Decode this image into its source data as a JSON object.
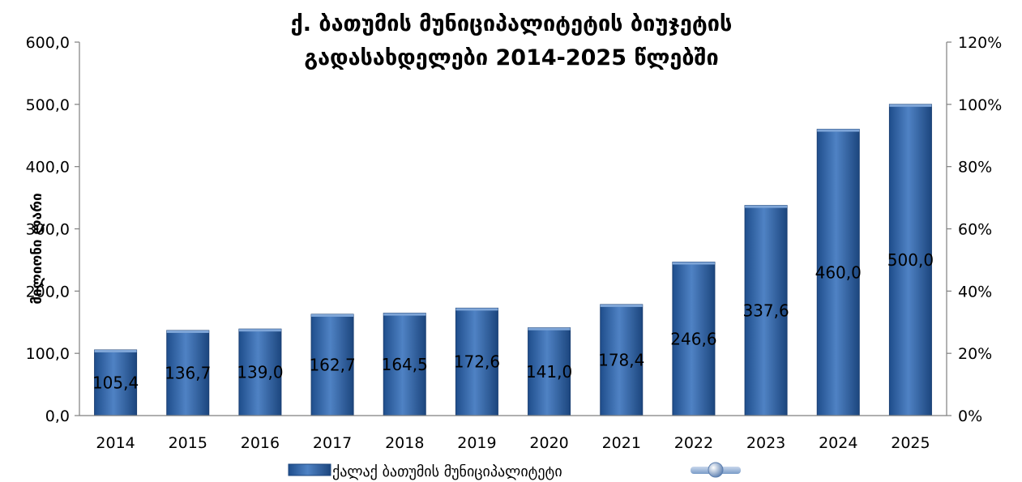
{
  "chart_data": {
    "type": "bar",
    "title": [
      "ქ. ბათუმის მუნიციპალიტეტის ბიუჯეტის",
      "გადასახდელები 2014-2025 წლებში"
    ],
    "ylabel": "მილიონი ლარი",
    "categories": [
      "2014",
      "2015",
      "2016",
      "2017",
      "2018",
      "2019",
      "2020",
      "2021",
      "2022",
      "2023",
      "2024",
      "2025"
    ],
    "series": [
      {
        "name": "ქალაქ ბათუმის მუნიციპალიტეტი",
        "values": [
          105.4,
          136.7,
          139.0,
          162.7,
          164.5,
          172.6,
          141.0,
          178.4,
          246.6,
          337.6,
          460.0,
          500.0
        ],
        "labels": [
          "105,4",
          "136,7",
          "139,0",
          "162,7",
          "164,5",
          "172,6",
          "141,0",
          "178,4",
          "246,6",
          "337,6",
          "460,0",
          "500,0"
        ],
        "color": "#2E5FA3"
      }
    ],
    "ylim": [
      0,
      600
    ],
    "y_ticks": [
      "0,0",
      "100,0",
      "200,0",
      "300,0",
      "400,0",
      "500,0",
      "600,0"
    ],
    "y2lim": [
      0,
      120
    ],
    "y2_ticks": [
      "0%",
      "20%",
      "40%",
      "60%",
      "80%",
      "100%",
      "120%"
    ],
    "legend_position": "bottom",
    "grid": false
  }
}
